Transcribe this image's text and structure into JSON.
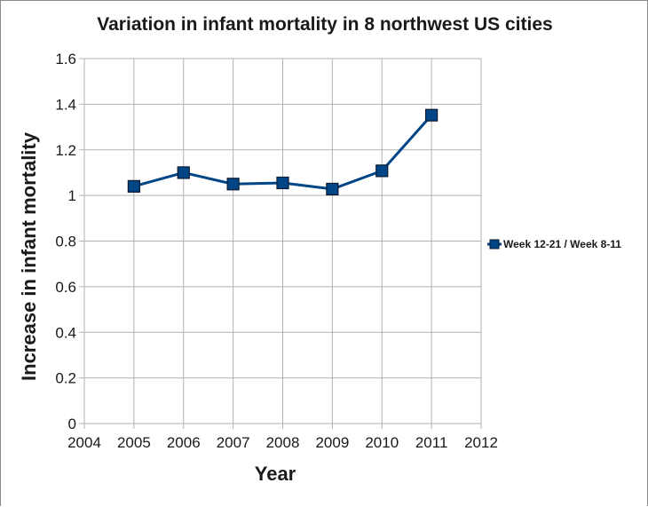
{
  "chart_data": {
    "type": "line",
    "title": "Variation in infant mortality in 8 northwest US cities",
    "xlabel": "Year",
    "ylabel": "Increase in infant mortality",
    "xlim": [
      2004,
      2012
    ],
    "ylim": [
      0,
      1.6
    ],
    "x_ticks": [
      "2004",
      "2005",
      "2006",
      "2007",
      "2008",
      "2009",
      "2010",
      "2011",
      "2012"
    ],
    "y_ticks": [
      "0",
      "0.2",
      "0.4",
      "0.6",
      "0.8",
      "1",
      "1.2",
      "1.4",
      "1.6"
    ],
    "grid": true,
    "legend_position": "right",
    "series": [
      {
        "name": "Week 12-21 / Week 8-11",
        "color": "#004586",
        "marker": "square",
        "x": [
          2005,
          2006,
          2007,
          2008,
          2009,
          2010,
          2011
        ],
        "y": [
          1.04,
          1.1,
          1.05,
          1.055,
          1.028,
          1.108,
          1.352
        ]
      }
    ]
  }
}
